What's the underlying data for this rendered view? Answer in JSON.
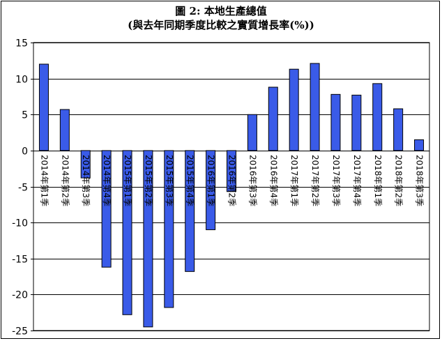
{
  "chart_data": {
    "type": "bar",
    "title": "圖 2: 本地生產總值",
    "subtitle": "(與去年同期季度比較之實質增長率(%))",
    "xlabel": "",
    "ylabel": "",
    "ylim": [
      -25,
      15
    ],
    "yticks": [
      15,
      10,
      5,
      0,
      -5,
      -10,
      -15,
      -20,
      -25
    ],
    "ytick_labels": [
      "15",
      "10",
      "5",
      "0",
      "-5",
      "-10",
      "-15",
      "-20",
      "-25"
    ],
    "grid": true,
    "legend": "none",
    "bar_color": "#3a5be8",
    "categories": [
      "2014年第1季",
      "2014年第2季",
      "2014年第3季",
      "2014年第4季",
      "2015年第1季",
      "2015年第2季",
      "2015年第3季",
      "2015年第4季",
      "2016年第1季",
      "2016年第2季",
      "2016年第3季",
      "2016年第4季",
      "2017年第1季",
      "2017年第2季",
      "2017年第3季",
      "2017年第4季",
      "2018年第1季",
      "2018年第2季",
      "2018年第3季"
    ],
    "values": [
      12.0,
      5.7,
      -3.8,
      -16.2,
      -22.8,
      -24.5,
      -21.8,
      -16.8,
      -11.0,
      -5.7,
      5.0,
      8.8,
      11.3,
      12.1,
      7.8,
      7.7,
      9.3,
      5.8,
      1.5
    ]
  }
}
